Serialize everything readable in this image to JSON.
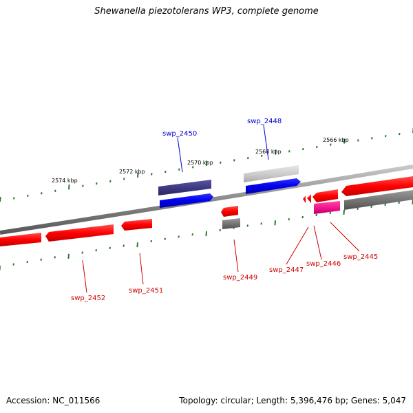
{
  "title": "Shewanella piezotolerans WP3, complete genome",
  "footer": {
    "accession": "Accession: NC_011566",
    "summary": "Topology: circular; Length: 5,396,476 bp; Genes: 5,047"
  },
  "colors": {
    "red": "#ff0000",
    "red_dark": "#c80000",
    "blue": "#0000ee",
    "navy": "#3b3580",
    "gray": "#7a7a7a",
    "light_gray": "#cfcfcf",
    "pink": "#ee1188",
    "tick_green": "#2a7a2a",
    "label_red": "#cc0000",
    "label_blue": "#0000cc"
  },
  "kbp_labels": [
    "2574 kbp",
    "2572 kbp",
    "2570 kbp",
    "2568 kbp",
    "2566 kbp"
  ],
  "gene_labels": {
    "swp_2450": "swp_2450",
    "swp_2448": "swp_2448",
    "swp_2452": "swp_2452",
    "swp_2451": "swp_2451",
    "swp_2449": "swp_2449",
    "swp_2447": "swp_2447",
    "swp_2446": "swp_2446",
    "swp_2445": "swp_2445"
  }
}
